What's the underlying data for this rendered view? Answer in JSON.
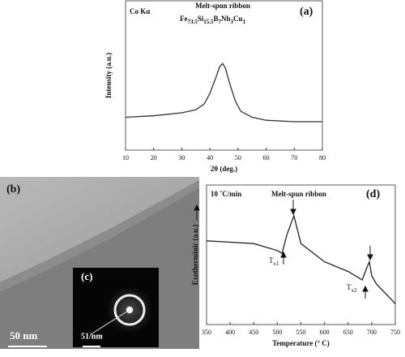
{
  "chart_data": [
    {
      "type": "line",
      "panel": "(a)",
      "source": "Co Kα",
      "sample": "Melt-spun ribbon",
      "formula": [
        "Fe",
        "73.5",
        "Si",
        "15.5",
        "B",
        "7",
        "Nb",
        "3",
        "Cu",
        "1"
      ],
      "xlabel": "2θ (deg.)",
      "ylabel": "Intensity (a.u.)",
      "xlim": [
        10,
        80
      ],
      "xticks": [
        10,
        20,
        30,
        40,
        50,
        60,
        70,
        80
      ],
      "ylim": [
        0,
        100
      ],
      "series": [
        {
          "color": "#333333",
          "x": [
            10,
            20,
            30,
            35,
            38,
            40,
            42,
            43.5,
            44.5,
            45.5,
            47,
            49,
            51,
            55,
            60,
            70,
            80
          ],
          "values": [
            22,
            23,
            25,
            27,
            31,
            38,
            48,
            56,
            58,
            55,
            45,
            33,
            26,
            22,
            20,
            19,
            19
          ]
        }
      ]
    },
    {
      "type": "line",
      "panel": "(d)",
      "rate": "10 ˚C/min",
      "sample": "Melt-spun ribbon",
      "tx1": [
        "T",
        "x1"
      ],
      "tx2": [
        "T",
        "x2"
      ],
      "xlabel": "Temperature (° C)",
      "ylabel": "Exotherminic (a.u.)",
      "xlim": [
        350,
        750
      ],
      "xticks": [
        350,
        400,
        450,
        500,
        550,
        600,
        650,
        700,
        750
      ],
      "ylim": [
        0,
        100
      ],
      "series": [
        {
          "color": "#222222",
          "x": [
            350,
            400,
            450,
            500,
            510,
            520,
            535,
            550,
            600,
            650,
            680,
            690,
            695,
            700,
            710,
            750
          ],
          "values": [
            60,
            59,
            58,
            53,
            51,
            64,
            78,
            58,
            45,
            38,
            32,
            41,
            45,
            35,
            29,
            15
          ]
        }
      ]
    }
  ],
  "image": {
    "label_b": "(b)",
    "label_c": "(c)",
    "scale_b": "50 nm",
    "scale_c": "51/nm"
  }
}
